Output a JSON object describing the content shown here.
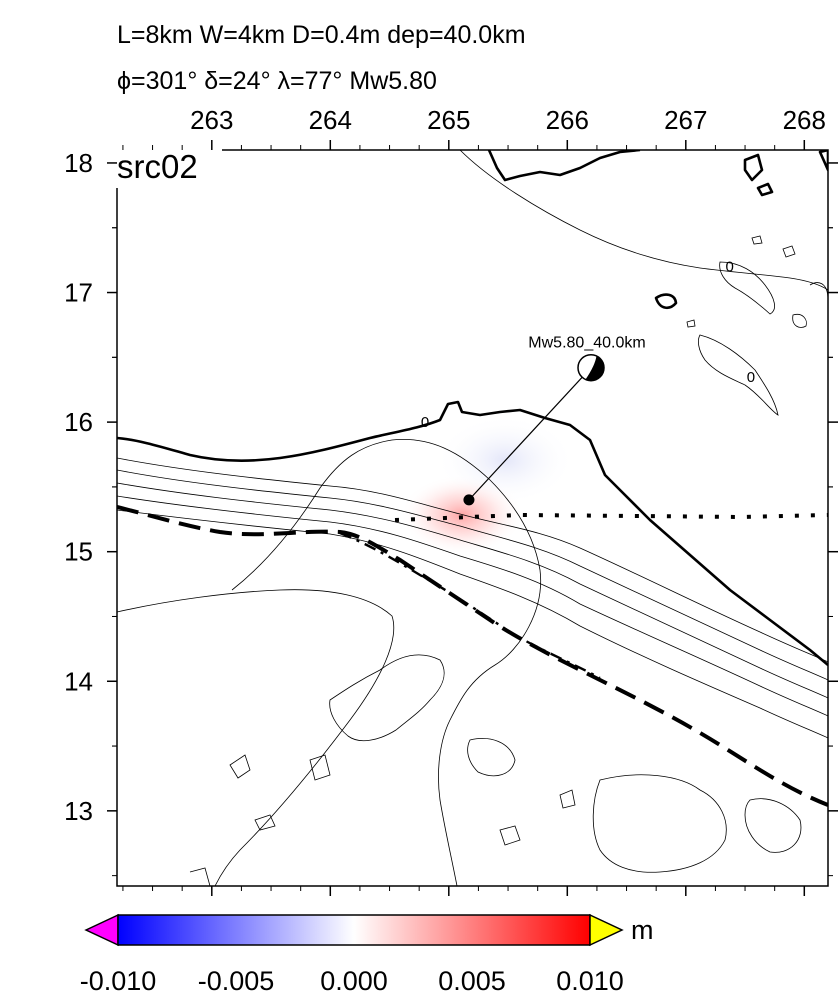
{
  "header": {
    "line1": "L=8km W=4km D=0.4m dep=40.0km",
    "line2": "ϕ=301° δ=24° λ=77° Mw5.80"
  },
  "panel_label": "src02",
  "map": {
    "x_range": [
      262.2,
      268.2
    ],
    "y_range": [
      12.42,
      18.1
    ],
    "x_ticks": [
      {
        "value": 263,
        "label": "263"
      },
      {
        "value": 264,
        "label": "264"
      },
      {
        "value": 265,
        "label": "265"
      },
      {
        "value": 266,
        "label": "266"
      },
      {
        "value": 267,
        "label": "267"
      },
      {
        "value": 268,
        "label": "268"
      }
    ],
    "y_ticks": [
      {
        "value": 13,
        "label": "13"
      },
      {
        "value": 14,
        "label": "14"
      },
      {
        "value": 15,
        "label": "15"
      },
      {
        "value": 16,
        "label": "16"
      },
      {
        "value": 17,
        "label": "17"
      },
      {
        "value": 18,
        "label": "18"
      }
    ],
    "source": {
      "epicenter": [
        265.17,
        15.4
      ],
      "beachball": [
        266.2,
        16.42
      ],
      "label": "Mw5.80_40.0km"
    },
    "contour_zero_labels": [
      {
        "text": "0",
        "at": [
          264.8,
          16.0
        ]
      },
      {
        "text": "0",
        "at": [
          267.55,
          16.35
        ]
      },
      {
        "text": "0",
        "at": [
          267.37,
          17.2
        ]
      }
    ]
  },
  "colorbar": {
    "unit": "m",
    "ticks": [
      "-0.010",
      "-0.005",
      "0.000",
      "0.005",
      "0.010"
    ],
    "min": -0.01,
    "max": 0.01,
    "colors": {
      "low_overflow": "#ff00ff",
      "low": "#0000ff",
      "mid": "#ffffff",
      "high": "#ff0000",
      "high_overflow": "#ffff00"
    }
  }
}
